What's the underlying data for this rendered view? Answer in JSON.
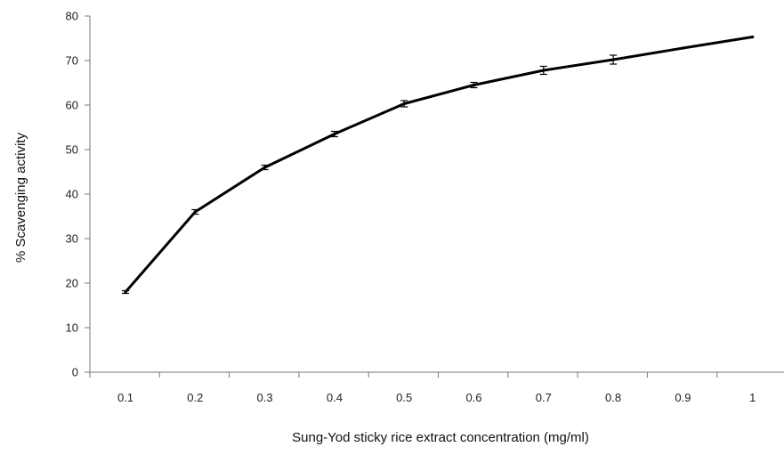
{
  "chart_data": {
    "type": "line",
    "title": "",
    "xlabel": "Sung-Yod  sticky  rice  extract  concentration  (mg/ml)",
    "ylabel": "%  Scavenging  activity",
    "categories": [
      "0.1",
      "0.2",
      "0.3",
      "0.4",
      "0.5",
      "0.6",
      "0.7",
      "0.8",
      "0.9",
      "1"
    ],
    "y_ticks": [
      "0",
      "10",
      "20",
      "30",
      "40",
      "50",
      "60",
      "70",
      "80"
    ],
    "ylim": [
      0,
      80
    ],
    "grid": false,
    "legend": "none",
    "series": [
      {
        "x": [
          0.1,
          0.2,
          0.3,
          0.4,
          0.5,
          0.6,
          0.7,
          0.8,
          0.9,
          1.0
        ],
        "values": [
          18,
          36,
          46,
          53.5,
          60.3,
          64.5,
          67.8,
          70.2,
          72.8,
          75.3
        ],
        "error": [
          0.3,
          0.5,
          0.5,
          0.6,
          0.7,
          0.6,
          0.9,
          1.0,
          0,
          0
        ],
        "color": "#000000"
      }
    ]
  }
}
